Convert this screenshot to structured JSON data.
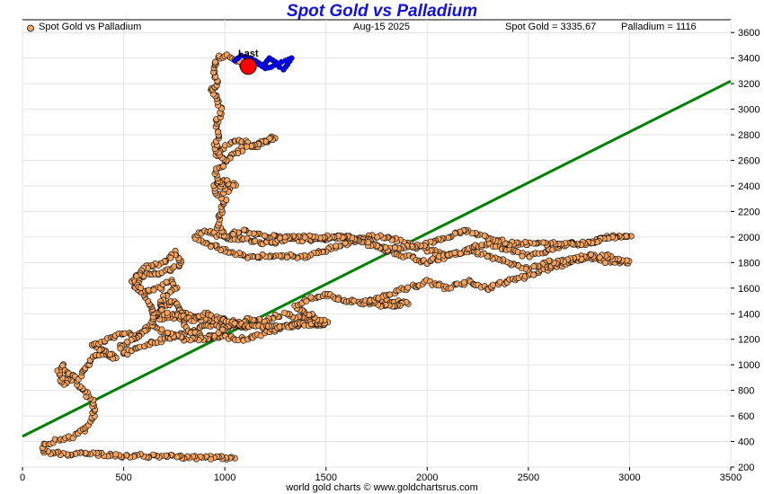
{
  "chart_data": {
    "type": "scatter",
    "title": "Spot Gold vs Palladium",
    "series_name": "Spot Gold vs Palladium",
    "date": "Aug-15  2025",
    "gold_readout": "Spot Gold = 3335.67",
    "palladium_readout": "Palladium = 1116",
    "last_label": "Last",
    "footer": "world gold charts © www.goldchartsrus.com",
    "xlim": [
      0,
      3500
    ],
    "ylim": [
      200,
      3700
    ],
    "x_ticks": [
      0,
      500,
      1000,
      1500,
      2000,
      2500,
      3000,
      3500
    ],
    "y_ticks": [
      200,
      400,
      600,
      800,
      1000,
      1200,
      1400,
      1600,
      1800,
      2000,
      2200,
      2400,
      2600,
      2800,
      3000,
      3200,
      3400,
      3600
    ],
    "grid": true,
    "legend_position": "top-left",
    "trendline": {
      "from": [
        0,
        440
      ],
      "to": [
        3500,
        3220
      ]
    },
    "last_point": [
      1116,
      3335.67
    ],
    "colors": {
      "point": "#f4a460",
      "path": "#f4a460",
      "recent": "#0000ff",
      "last": "#ff0000",
      "trend": "#008000",
      "title": "#1010e0"
    },
    "path": [
      [
        1050,
        270
      ],
      [
        900,
        275
      ],
      [
        700,
        285
      ],
      [
        500,
        290
      ],
      [
        350,
        300
      ],
      [
        250,
        300
      ],
      [
        150,
        310
      ],
      [
        100,
        330
      ],
      [
        100,
        380
      ],
      [
        150,
        400
      ],
      [
        200,
        420
      ],
      [
        250,
        440
      ],
      [
        300,
        480
      ],
      [
        330,
        540
      ],
      [
        350,
        600
      ],
      [
        360,
        650
      ],
      [
        350,
        700
      ],
      [
        300,
        800
      ],
      [
        250,
        900
      ],
      [
        200,
        850
      ],
      [
        180,
        950
      ],
      [
        200,
        1000
      ],
      [
        230,
        920
      ],
      [
        280,
        900
      ],
      [
        350,
        1050
      ],
      [
        400,
        1100
      ],
      [
        460,
        1050
      ],
      [
        420,
        1100
      ],
      [
        350,
        1150
      ],
      [
        420,
        1200
      ],
      [
        500,
        1250
      ],
      [
        560,
        1220
      ],
      [
        620,
        1300
      ],
      [
        560,
        1200
      ],
      [
        480,
        1150
      ],
      [
        500,
        1080
      ],
      [
        600,
        1150
      ],
      [
        700,
        1200
      ],
      [
        800,
        1250
      ],
      [
        900,
        1300
      ],
      [
        1000,
        1300
      ],
      [
        1100,
        1300
      ],
      [
        1000,
        1350
      ],
      [
        900,
        1350
      ],
      [
        800,
        1400
      ],
      [
        700,
        1350
      ],
      [
        640,
        1400
      ],
      [
        700,
        1450
      ],
      [
        750,
        1500
      ],
      [
        780,
        1400
      ],
      [
        800,
        1300
      ],
      [
        850,
        1250
      ],
      [
        900,
        1200
      ],
      [
        1000,
        1220
      ],
      [
        1100,
        1200
      ],
      [
        1200,
        1250
      ],
      [
        1300,
        1300
      ],
      [
        1400,
        1320
      ],
      [
        1500,
        1320
      ],
      [
        1400,
        1350
      ],
      [
        1300,
        1400
      ],
      [
        1200,
        1350
      ],
      [
        1100,
        1350
      ],
      [
        1000,
        1280
      ],
      [
        900,
        1200
      ],
      [
        800,
        1200
      ],
      [
        700,
        1250
      ],
      [
        650,
        1300
      ],
      [
        640,
        1400
      ],
      [
        620,
        1500
      ],
      [
        600,
        1550
      ],
      [
        560,
        1600
      ],
      [
        540,
        1650
      ],
      [
        600,
        1700
      ],
      [
        680,
        1720
      ],
      [
        750,
        1750
      ],
      [
        780,
        1800
      ],
      [
        760,
        1880
      ],
      [
        700,
        1800
      ],
      [
        650,
        1780
      ],
      [
        600,
        1750
      ],
      [
        560,
        1680
      ],
      [
        580,
        1600
      ],
      [
        620,
        1580
      ],
      [
        680,
        1600
      ],
      [
        730,
        1650
      ],
      [
        760,
        1600
      ],
      [
        720,
        1550
      ],
      [
        680,
        1500
      ],
      [
        700,
        1400
      ],
      [
        780,
        1380
      ],
      [
        850,
        1350
      ],
      [
        900,
        1400
      ],
      [
        1000,
        1350
      ],
      [
        1100,
        1300
      ],
      [
        1200,
        1300
      ],
      [
        1300,
        1300
      ],
      [
        1400,
        1320
      ],
      [
        1500,
        1330
      ],
      [
        1400,
        1400
      ],
      [
        1350,
        1450
      ],
      [
        1400,
        1500
      ],
      [
        1500,
        1550
      ],
      [
        1600,
        1500
      ],
      [
        1700,
        1480
      ],
      [
        1800,
        1500
      ],
      [
        1900,
        1480
      ],
      [
        1800,
        1450
      ],
      [
        1700,
        1500
      ],
      [
        1800,
        1550
      ],
      [
        1900,
        1600
      ],
      [
        2000,
        1650
      ],
      [
        2100,
        1600
      ],
      [
        2200,
        1650
      ],
      [
        2300,
        1600
      ],
      [
        2400,
        1650
      ],
      [
        2500,
        1700
      ],
      [
        2600,
        1750
      ],
      [
        2700,
        1800
      ],
      [
        2800,
        1850
      ],
      [
        2900,
        1800
      ],
      [
        3000,
        1800
      ],
      [
        2900,
        1850
      ],
      [
        2800,
        1850
      ],
      [
        2700,
        1820
      ],
      [
        2600,
        1800
      ],
      [
        2500,
        1750
      ],
      [
        2400,
        1800
      ],
      [
        2300,
        1850
      ],
      [
        2200,
        1900
      ],
      [
        2100,
        1850
      ],
      [
        2000,
        1900
      ],
      [
        1900,
        1950
      ],
      [
        1800,
        2000
      ],
      [
        1700,
        2000
      ],
      [
        1600,
        1950
      ],
      [
        1500,
        1900
      ],
      [
        1400,
        1850
      ],
      [
        1300,
        1850
      ],
      [
        1200,
        1850
      ],
      [
        1100,
        1850
      ],
      [
        1000,
        1900
      ],
      [
        900,
        1950
      ],
      [
        850,
        2000
      ],
      [
        900,
        2050
      ],
      [
        1000,
        2000
      ],
      [
        1100,
        1980
      ],
      [
        1200,
        1950
      ],
      [
        1300,
        1980
      ],
      [
        1400,
        1980
      ],
      [
        1500,
        1990
      ],
      [
        1600,
        2000
      ],
      [
        1700,
        1980
      ],
      [
        1800,
        1900
      ],
      [
        1900,
        1850
      ],
      [
        2000,
        1800
      ],
      [
        2100,
        1850
      ],
      [
        2200,
        1900
      ],
      [
        2300,
        1950
      ],
      [
        2400,
        1900
      ],
      [
        2500,
        1850
      ],
      [
        2600,
        1900
      ],
      [
        2700,
        1950
      ],
      [
        2800,
        1950
      ],
      [
        2900,
        2000
      ],
      [
        3000,
        2000
      ],
      [
        2900,
        2000
      ],
      [
        2800,
        1950
      ],
      [
        2700,
        1950
      ],
      [
        2600,
        1950
      ],
      [
        2500,
        1950
      ],
      [
        2400,
        1950
      ],
      [
        2300,
        2000
      ],
      [
        2200,
        2050
      ],
      [
        2100,
        2000
      ],
      [
        2000,
        1950
      ],
      [
        1900,
        1920
      ],
      [
        1800,
        1900
      ],
      [
        1700,
        1950
      ],
      [
        1600,
        2000
      ],
      [
        1500,
        2000
      ],
      [
        1400,
        2000
      ],
      [
        1300,
        2000
      ],
      [
        1200,
        2000
      ],
      [
        1100,
        2050
      ],
      [
        1000,
        2000
      ],
      [
        960,
        2100
      ],
      [
        980,
        2200
      ],
      [
        1000,
        2300
      ],
      [
        960,
        2350
      ],
      [
        950,
        2400
      ],
      [
        1000,
        2450
      ],
      [
        1050,
        2400
      ],
      [
        1000,
        2350
      ],
      [
        950,
        2500
      ],
      [
        980,
        2550
      ],
      [
        1000,
        2600
      ],
      [
        950,
        2650
      ],
      [
        1000,
        2700
      ],
      [
        1050,
        2750
      ],
      [
        1100,
        2750
      ],
      [
        1150,
        2700
      ],
      [
        1200,
        2750
      ],
      [
        1250,
        2780
      ],
      [
        1100,
        2700
      ],
      [
        1050,
        2650
      ],
      [
        1000,
        2600
      ],
      [
        950,
        2700
      ],
      [
        970,
        2800
      ],
      [
        960,
        2900
      ],
      [
        980,
        3000
      ],
      [
        960,
        3100
      ],
      [
        930,
        3150
      ],
      [
        960,
        3200
      ],
      [
        950,
        3300
      ],
      [
        960,
        3400
      ],
      [
        1000,
        3420
      ],
      [
        1050,
        3400
      ],
      [
        1080,
        3350
      ],
      [
        1116,
        3336
      ]
    ],
    "recent": [
      [
        1050,
        3380
      ],
      [
        1080,
        3420
      ],
      [
        1120,
        3400
      ],
      [
        1150,
        3380
      ],
      [
        1180,
        3350
      ],
      [
        1200,
        3360
      ],
      [
        1220,
        3400
      ],
      [
        1250,
        3370
      ],
      [
        1270,
        3330
      ],
      [
        1290,
        3310
      ],
      [
        1310,
        3350
      ],
      [
        1330,
        3400
      ],
      [
        1300,
        3380
      ],
      [
        1260,
        3360
      ],
      [
        1230,
        3330
      ],
      [
        1200,
        3320
      ],
      [
        1170,
        3350
      ],
      [
        1140,
        3380
      ],
      [
        1116,
        3336
      ]
    ]
  }
}
